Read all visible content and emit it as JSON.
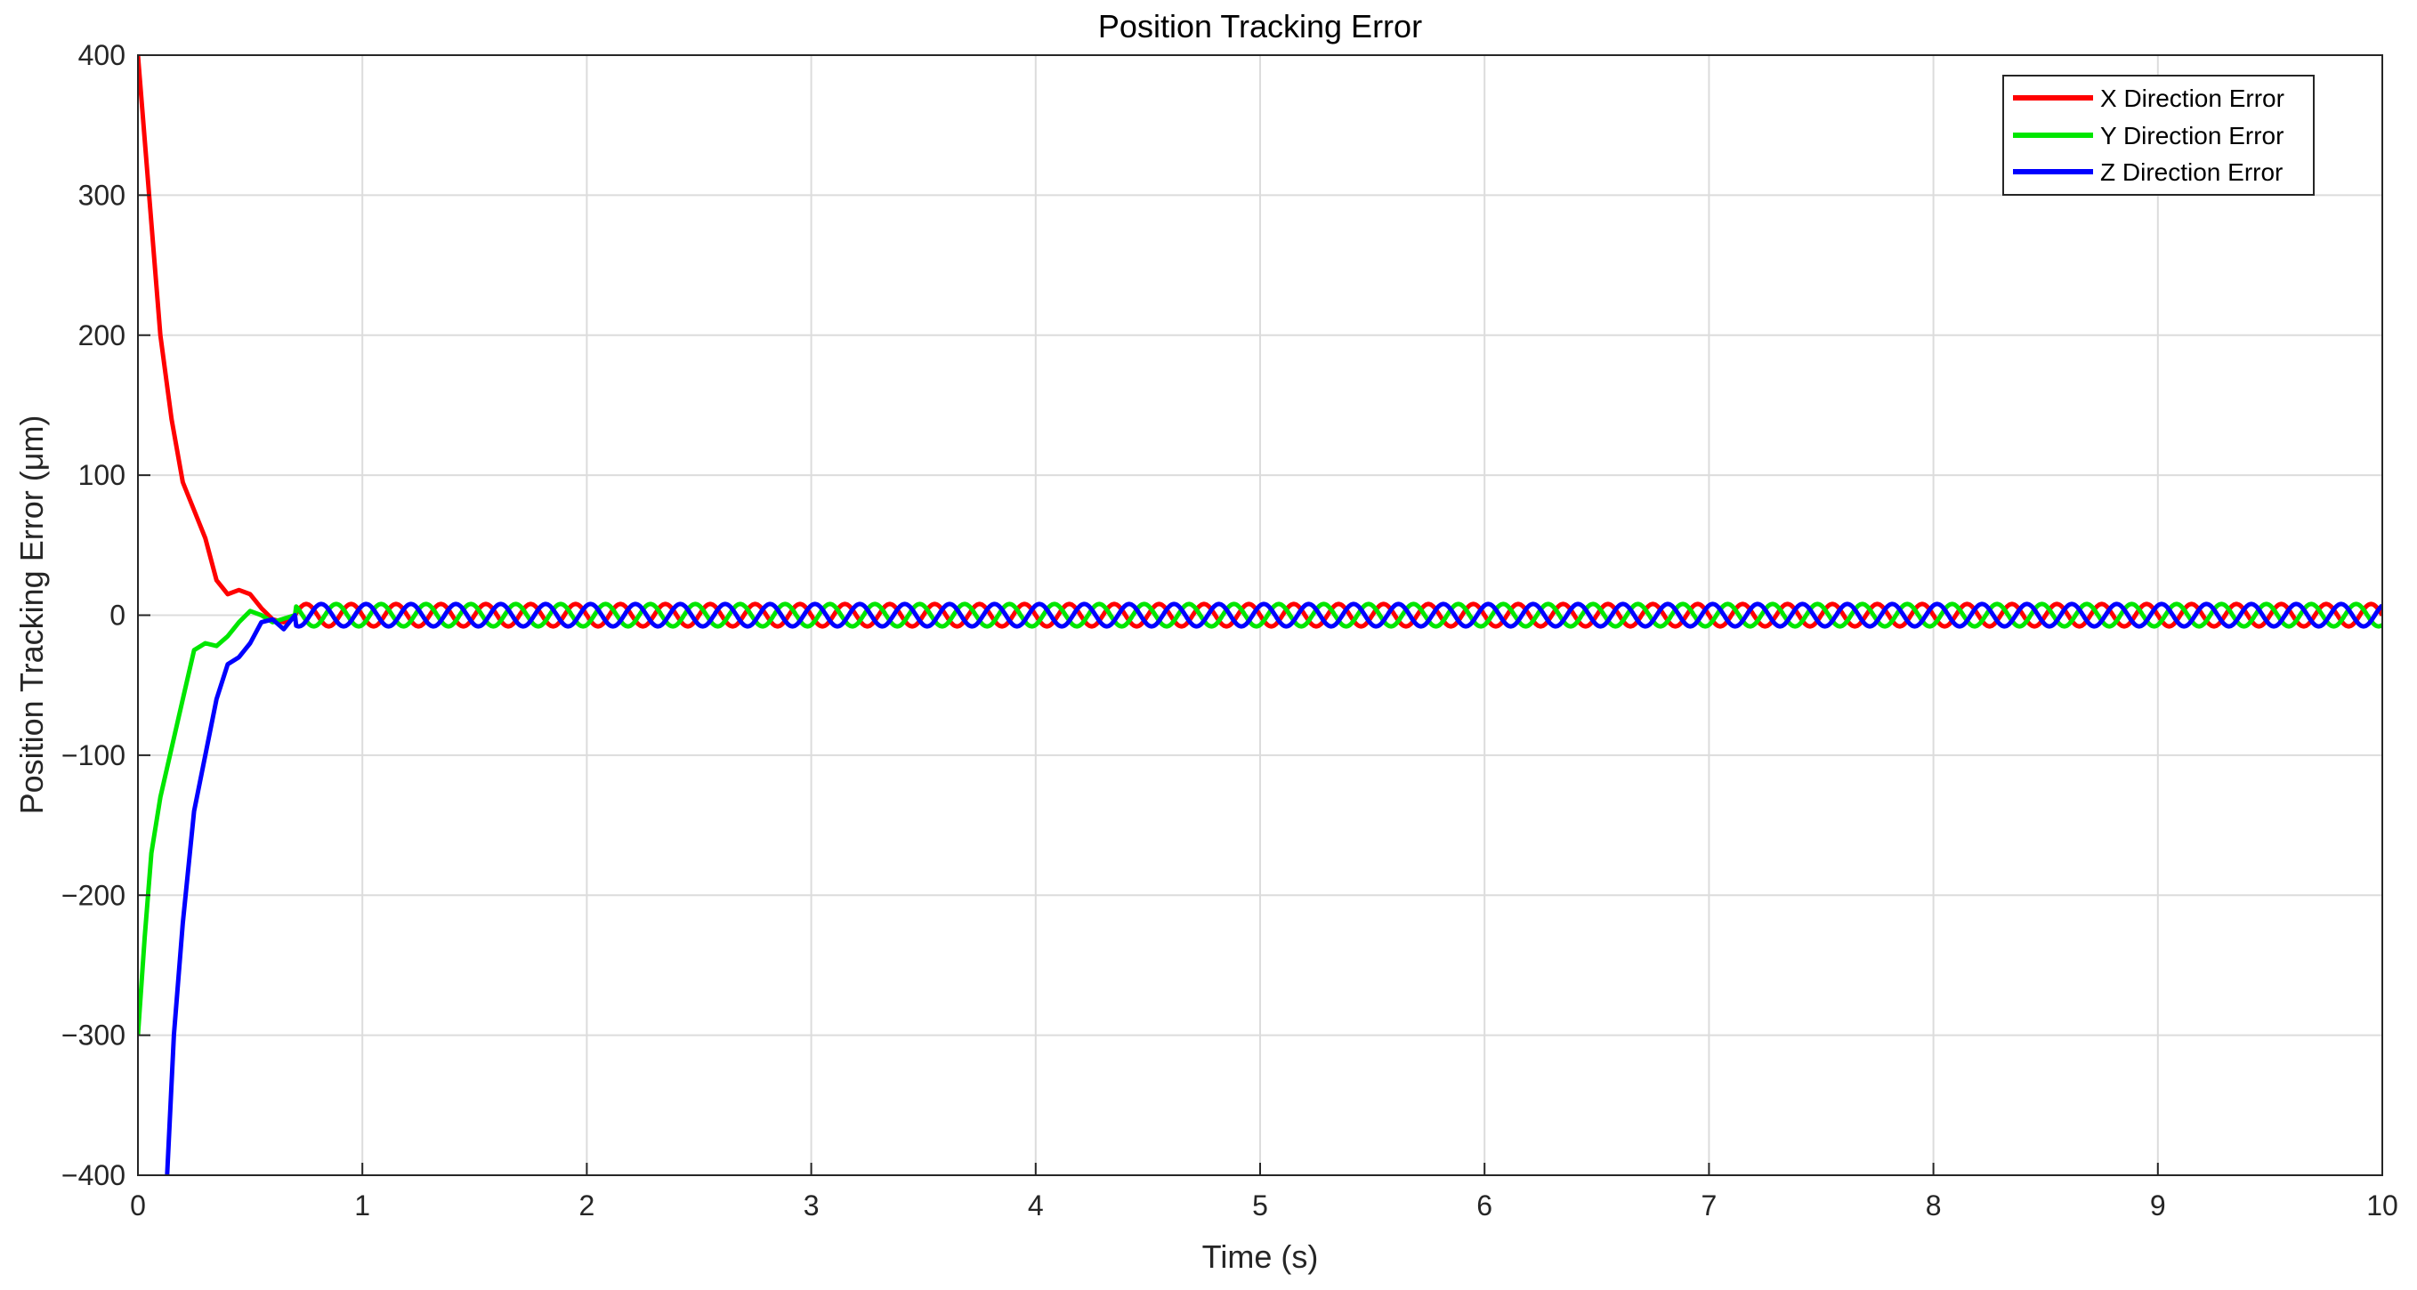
{
  "chart_data": {
    "type": "line",
    "title": "Position Tracking Error",
    "xlabel": "Time (s)",
    "ylabel": "Position Tracking Error (μm)",
    "xlim": [
      0,
      10
    ],
    "ylim": [
      -400,
      400
    ],
    "xticks": [
      0,
      1,
      2,
      3,
      4,
      5,
      6,
      7,
      8,
      9,
      10
    ],
    "yticks": [
      400,
      300,
      200,
      100,
      0,
      -100,
      -200,
      -300,
      -400
    ],
    "ytick_labels": [
      "400",
      "300",
      "200",
      "100",
      "0",
      "−100",
      "−200",
      "−300",
      "−400"
    ],
    "grid": true,
    "legend_position": "top-right",
    "series": [
      {
        "name": "X Direction Error",
        "color": "#ff0000",
        "transient": {
          "x": [
            0,
            0.05,
            0.1,
            0.15,
            0.2,
            0.25,
            0.3,
            0.35,
            0.4,
            0.45,
            0.5,
            0.55,
            0.6,
            0.65,
            0.7
          ],
          "y": [
            400,
            300,
            200,
            140,
            95,
            75,
            55,
            25,
            15,
            18,
            15,
            5,
            -3,
            -5,
            0
          ]
        },
        "steady_state": {
          "amplitude": 8,
          "period": 0.2,
          "phase": 0.0,
          "t_start": 0.7
        }
      },
      {
        "name": "Y Direction Error",
        "color": "#00e600",
        "transient": {
          "x": [
            0,
            0.03,
            0.06,
            0.1,
            0.15,
            0.2,
            0.25,
            0.3,
            0.35,
            0.4,
            0.45,
            0.5,
            0.55,
            0.6,
            0.7
          ],
          "y": [
            -300,
            -230,
            -170,
            -130,
            -95,
            -60,
            -25,
            -20,
            -22,
            -15,
            -5,
            3,
            0,
            -5,
            0
          ]
        },
        "steady_state": {
          "amplitude": 8,
          "period": 0.2,
          "phase": 2.094,
          "t_start": 0.7
        }
      },
      {
        "name": "Z Direction Error",
        "color": "#0000ff",
        "transient": {
          "x": [
            0.13,
            0.16,
            0.2,
            0.25,
            0.3,
            0.35,
            0.4,
            0.45,
            0.5,
            0.55,
            0.6,
            0.65,
            0.7
          ],
          "y": [
            -400,
            -300,
            -220,
            -140,
            -100,
            -60,
            -35,
            -30,
            -20,
            -5,
            -3,
            -10,
            0
          ]
        },
        "steady_state": {
          "amplitude": 8,
          "period": 0.2,
          "phase": 4.189,
          "t_start": 0.7
        }
      }
    ]
  }
}
